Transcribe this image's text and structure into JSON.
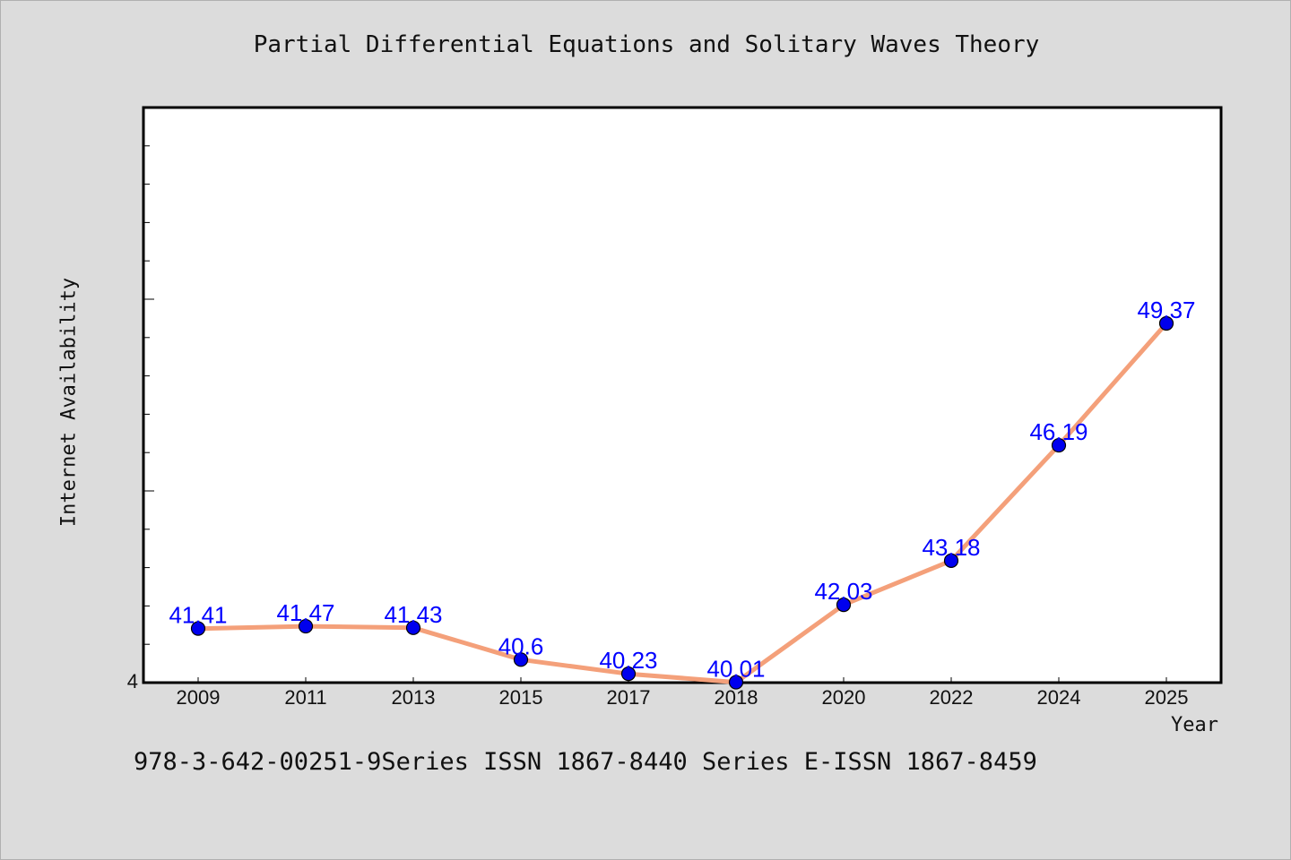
{
  "colors": {
    "background": "#dcdcdc",
    "plot_background": "#ffffff",
    "line": "#f4a07a",
    "marker_fill": "#0000ee",
    "label": "#0000ff"
  },
  "footer": "978-3-642-00251-9Series ISSN 1867-8440 Series E-ISSN 1867-8459",
  "chart_data": {
    "type": "line",
    "title": "Partial Differential Equations and Solitary Waves Theory",
    "xlabel": "Year",
    "ylabel": "Internet Availability",
    "categories": [
      "2009",
      "2011",
      "2013",
      "2015",
      "2017",
      "2018",
      "2020",
      "2022",
      "2024",
      "2025"
    ],
    "series": [
      {
        "values": [
          41.41,
          41.47,
          41.43,
          40.6,
          40.23,
          40.01,
          42.03,
          43.18,
          46.19,
          49.37
        ],
        "labels": [
          "41.41",
          "41.47",
          "41.43",
          "40.6",
          "40.23",
          "40.01",
          "42.03",
          "43.18",
          "46.19",
          "49.37"
        ]
      }
    ],
    "y_tick_labels": [
      "4"
    ],
    "ylim": [
      40,
      55
    ],
    "grid": false,
    "legend": "none"
  }
}
